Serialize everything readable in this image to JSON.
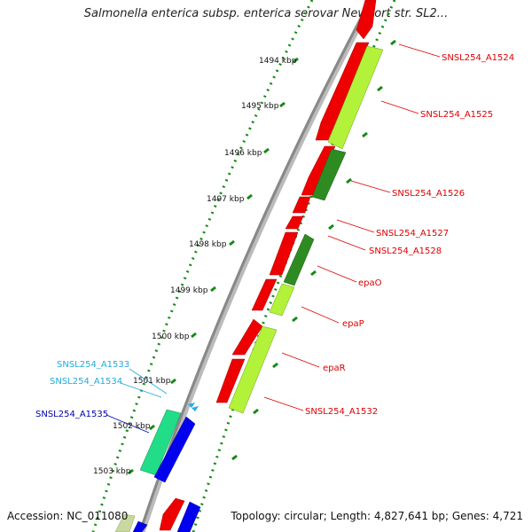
{
  "title": "Salmonella enterica subsp. enterica serovar Newport str. SL2...",
  "accession": "Accession: NC_011080",
  "topology": "Topology: circular; Length: 4,827,641 bp; Genes: 4,721",
  "colors": {
    "forward_cds": "#ee0000",
    "reverse_cds": "#b2f23a",
    "reverse_cds_dark": "#2e8b22",
    "teal_gene": "#22dd88",
    "blue_gene": "#0000ee",
    "backbone": "#888888",
    "tick_dots": "#138a13",
    "label_red": "#dd0000",
    "label_cyan": "#22aadd",
    "label_blue": "#0000aa"
  },
  "kbp_labels": [
    "1494 kbp",
    "1495 kbp",
    "1496 kbp",
    "1497 kbp",
    "1498 kbp",
    "1499 kbp",
    "1500 kbp",
    "1501 kbp",
    "1502 kbp",
    "1503 kbp"
  ],
  "gene_labels": {
    "SNSL254_A1524": "SNSL254_A1524",
    "SNSL254_A1525": "SNSL254_A1525",
    "SNSL254_A1526": "SNSL254_A1526",
    "SNSL254_A1527": "SNSL254_A1527",
    "SNSL254_A1528": "SNSL254_A1528",
    "epaO": "epaO",
    "epaP": "epaP",
    "epaR": "epaR",
    "SNSL254_A1532": "SNSL254_A1532",
    "SNSL254_A1533": "SNSL254_A1533",
    "SNSL254_A1534": "SNSL254_A1534",
    "SNSL254_A1535": "SNSL254_A1535"
  }
}
